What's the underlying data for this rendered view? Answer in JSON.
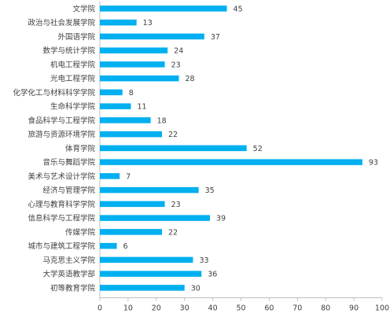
{
  "chart_data": {
    "type": "bar",
    "orientation": "horizontal",
    "categories": [
      "文学院",
      "政治与社会发展学院",
      "外国语学院",
      "数学与统计学院",
      "机电工程学院",
      "光电工程学院",
      "化学化工与材料科学学院",
      "生命科学学院",
      "食品科学与工程学院",
      "旅游与资源环境学院",
      "体育学院",
      "音乐与舞蹈学院",
      "美术与艺术设计学院",
      "经济与管理学院",
      "心理与教育科学学院",
      "信息科学与工程学院",
      "传媒学院",
      "城市与建筑工程学院",
      "马克思主义学院",
      "大学英语教学部",
      "初等教育学院"
    ],
    "values": [
      45,
      13,
      37,
      24,
      23,
      28,
      8,
      11,
      18,
      22,
      52,
      93,
      7,
      35,
      23,
      39,
      22,
      6,
      33,
      36,
      30
    ],
    "xlim": [
      0,
      100
    ],
    "xticks": [
      "0",
      "10",
      "20",
      "30",
      "40",
      "50",
      "60",
      "70",
      "80",
      "90",
      "100"
    ],
    "grid": false,
    "legend": "none",
    "bar_color": "#00b0f0",
    "title": "",
    "xlabel": "",
    "ylabel": ""
  }
}
